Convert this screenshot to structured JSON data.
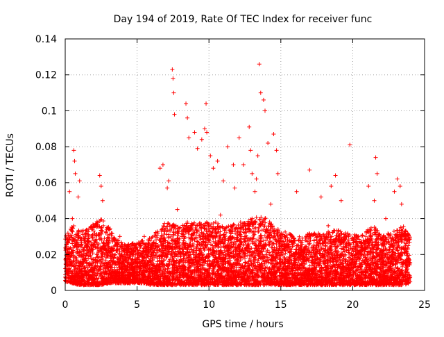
{
  "chart_data": {
    "type": "scatter",
    "title": "Day 194 of 2019, Rate Of TEC Index for receiver func",
    "xlabel": "GPS time / hours",
    "ylabel": "ROTI / TECUs",
    "xlim": [
      0,
      25
    ],
    "ylim": [
      0,
      0.14
    ],
    "x_ticks": [
      0,
      5,
      10,
      15,
      20,
      25
    ],
    "x_tick_labels": [
      "0",
      "5",
      "10",
      "15",
      "20",
      "25"
    ],
    "y_ticks": [
      0,
      0.02,
      0.04,
      0.06,
      0.08,
      0.1,
      0.12,
      0.14
    ],
    "y_tick_labels": [
      "0",
      "0.02",
      "0.04",
      "0.06",
      "0.08",
      "0.1",
      "0.12",
      "0.14"
    ],
    "grid": true,
    "marker": "+",
    "color": "#ff0000",
    "series": [
      {
        "name": "ROTI",
        "x": [
          0.3,
          0.6,
          0.65,
          0.7,
          0.9,
          1.0,
          2.4,
          2.5,
          2.6,
          6.6,
          6.8,
          7.1,
          7.2,
          7.45,
          7.5,
          7.55,
          7.6,
          8.4,
          8.5,
          8.6,
          9.0,
          9.2,
          9.5,
          9.7,
          9.8,
          9.85,
          10.1,
          10.3,
          10.6,
          11.0,
          11.3,
          11.7,
          11.8,
          12.1,
          12.4,
          12.8,
          12.9,
          13.0,
          13.2,
          13.3,
          13.4,
          13.5,
          13.6,
          13.8,
          13.9,
          14.1,
          14.5,
          14.7,
          14.8,
          16.1,
          17.0,
          17.8,
          18.5,
          18.8,
          19.2,
          19.8,
          21.1,
          21.5,
          21.6,
          21.7,
          22.9,
          23.1,
          23.3,
          23.4,
          0.1,
          0.2,
          1.5,
          3.3,
          4.2,
          5.0,
          5.5,
          6.0,
          8.0,
          9.0,
          10.5,
          11.5,
          12.5,
          13.0,
          15.5,
          16.5,
          17.5,
          18.0,
          19.0,
          20.5,
          22.0,
          23.8,
          0.5,
          1.8,
          3.8,
          4.8,
          5.8,
          6.3,
          7.8,
          10.8,
          12.2,
          14.3,
          15.8,
          16.8,
          18.3,
          19.5,
          20.8,
          22.3,
          23.6,
          0.8,
          2.9,
          4.5,
          6.9,
          8.8,
          11.2,
          13.7,
          15.2,
          17.2,
          19.7,
          21.3,
          23.2
        ],
        "y": [
          0.055,
          0.078,
          0.072,
          0.065,
          0.052,
          0.061,
          0.064,
          0.058,
          0.05,
          0.068,
          0.07,
          0.057,
          0.061,
          0.123,
          0.118,
          0.11,
          0.098,
          0.104,
          0.096,
          0.085,
          0.088,
          0.079,
          0.084,
          0.09,
          0.104,
          0.088,
          0.075,
          0.068,
          0.072,
          0.061,
          0.08,
          0.07,
          0.057,
          0.085,
          0.07,
          0.091,
          0.078,
          0.065,
          0.055,
          0.062,
          0.075,
          0.126,
          0.11,
          0.106,
          0.1,
          0.082,
          0.087,
          0.078,
          0.065,
          0.055,
          0.067,
          0.052,
          0.058,
          0.064,
          0.05,
          0.081,
          0.058,
          0.05,
          0.074,
          0.065,
          0.055,
          0.062,
          0.058,
          0.048,
          0.015,
          0.02,
          0.025,
          0.02,
          0.022,
          0.015,
          0.03,
          0.012,
          0.035,
          0.028,
          0.025,
          0.03,
          0.018,
          0.04,
          0.022,
          0.018,
          0.024,
          0.02,
          0.03,
          0.015,
          0.02,
          0.012,
          0.04,
          0.035,
          0.03,
          0.025,
          0.028,
          0.032,
          0.045,
          0.042,
          0.038,
          0.048,
          0.03,
          0.028,
          0.036,
          0.032,
          0.026,
          0.04,
          0.024,
          0.01,
          0.012,
          0.008,
          0.01,
          0.008,
          0.012,
          0.01,
          0.008,
          0.01,
          0.012,
          0.009,
          0.011
        ]
      }
    ],
    "density_profile": {
      "x": [
        0,
        0.5,
        1,
        1.5,
        2,
        2.5,
        3,
        3.5,
        4,
        4.5,
        5,
        5.5,
        6,
        6.5,
        7,
        7.5,
        8,
        8.5,
        9,
        9.5,
        10,
        10.5,
        11,
        11.5,
        12,
        12.5,
        13,
        13.5,
        14,
        14.5,
        15,
        15.5,
        16,
        16.5,
        17,
        17.5,
        18,
        18.5,
        19,
        19.5,
        20,
        20.5,
        21,
        21.5,
        22,
        22.5,
        23,
        23.5,
        24
      ],
      "ymin": [
        0.005,
        0.004,
        0.003,
        0.003,
        0.003,
        0.003,
        0.004,
        0.004,
        0.004,
        0.004,
        0.004,
        0.004,
        0.003,
        0.003,
        0.003,
        0.003,
        0.003,
        0.003,
        0.003,
        0.003,
        0.003,
        0.003,
        0.003,
        0.003,
        0.003,
        0.003,
        0.003,
        0.003,
        0.003,
        0.003,
        0.003,
        0.003,
        0.003,
        0.003,
        0.003,
        0.003,
        0.003,
        0.003,
        0.003,
        0.003,
        0.003,
        0.003,
        0.003,
        0.003,
        0.003,
        0.003,
        0.003,
        0.003,
        0.004
      ],
      "ymax": [
        0.03,
        0.038,
        0.033,
        0.034,
        0.038,
        0.04,
        0.036,
        0.03,
        0.026,
        0.026,
        0.027,
        0.028,
        0.03,
        0.034,
        0.038,
        0.037,
        0.036,
        0.038,
        0.038,
        0.038,
        0.039,
        0.038,
        0.036,
        0.036,
        0.038,
        0.038,
        0.04,
        0.042,
        0.04,
        0.036,
        0.034,
        0.032,
        0.03,
        0.03,
        0.032,
        0.032,
        0.032,
        0.034,
        0.034,
        0.032,
        0.032,
        0.03,
        0.034,
        0.036,
        0.03,
        0.032,
        0.034,
        0.036,
        0.03
      ]
    }
  }
}
